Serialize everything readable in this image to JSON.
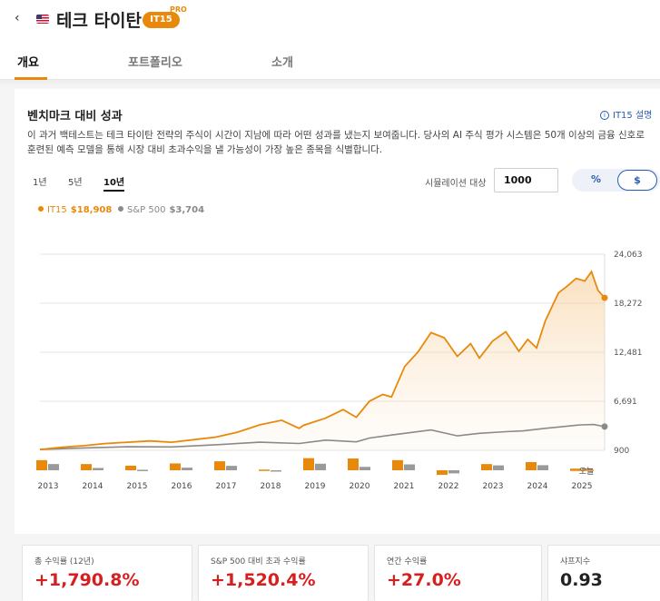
{
  "header": {
    "back_glyph": "‹",
    "title": "테크 타이탄",
    "badge": "IT15",
    "badge_sup": "PRO",
    "flag_icon": "us-flag-icon"
  },
  "tabs": [
    {
      "label": "개요",
      "active": true
    },
    {
      "label": "포트폴리오"
    },
    {
      "label": "소개"
    }
  ],
  "section": {
    "title": "벤치마크 대비 성과",
    "info_label": "IT15 설명",
    "description": "이 과거 백테스트는 테크 타이탄 전략의 주식이 시간이 지남에 따라 어떤 성과를 냈는지 보여줍니다. 당사의 AI 주식 평가 시스템은 50개 이상의 금융 신호로 훈련된 예측 모델을 통해 시장 대비 초과수익을 낼 가능성이 가장 높은 종목을 식별합니다."
  },
  "controls": {
    "periods": [
      {
        "label": "1년"
      },
      {
        "label": "5년"
      },
      {
        "label": "10년",
        "active": true
      }
    ],
    "sim_label": "시뮬레이션 대상",
    "sim_value": "1000",
    "toggle_pct": "%",
    "toggle_usd": "$"
  },
  "legend": [
    {
      "name": "IT15",
      "value": "$18,908",
      "color": "#e8890c"
    },
    {
      "name": "S&P 500",
      "value": "$3,704",
      "color": "#8a8a8a"
    }
  ],
  "chart_data": {
    "type": "line",
    "y_ticks": [
      "24,063",
      "18,272",
      "12,481",
      "6,691",
      "900"
    ],
    "ylim": [
      900,
      24063
    ],
    "x_labels": [
      "2013",
      "2014",
      "2015",
      "2016",
      "2017",
      "2018",
      "2019",
      "2020",
      "2021",
      "2022",
      "2023",
      "2024",
      "2025",
      "오늘"
    ],
    "grid": true,
    "series": [
      {
        "name": "IT15",
        "color": "#e8890c",
        "points": [
          [
            2013.0,
            1000
          ],
          [
            2013.5,
            1250
          ],
          [
            2014.0,
            1450
          ],
          [
            2014.5,
            1700
          ],
          [
            2015.0,
            1850
          ],
          [
            2015.5,
            2000
          ],
          [
            2016.0,
            1850
          ],
          [
            2016.5,
            2150
          ],
          [
            2017.0,
            2450
          ],
          [
            2017.5,
            3050
          ],
          [
            2018.0,
            3900
          ],
          [
            2018.5,
            4450
          ],
          [
            2018.9,
            3500
          ],
          [
            2019.0,
            3850
          ],
          [
            2019.5,
            4700
          ],
          [
            2019.9,
            5700
          ],
          [
            2020.2,
            4800
          ],
          [
            2020.5,
            6700
          ],
          [
            2020.8,
            7500
          ],
          [
            2021.0,
            7200
          ],
          [
            2021.3,
            10800
          ],
          [
            2021.6,
            12500
          ],
          [
            2021.9,
            14800
          ],
          [
            2022.2,
            14200
          ],
          [
            2022.5,
            12000
          ],
          [
            2022.8,
            13500
          ],
          [
            2023.0,
            11800
          ],
          [
            2023.3,
            13800
          ],
          [
            2023.6,
            14900
          ],
          [
            2023.9,
            12600
          ],
          [
            2024.1,
            14000
          ],
          [
            2024.3,
            13000
          ],
          [
            2024.5,
            16200
          ],
          [
            2024.8,
            19500
          ],
          [
            2025.0,
            20300
          ],
          [
            2025.2,
            21200
          ],
          [
            2025.4,
            20900
          ],
          [
            2025.55,
            22000
          ],
          [
            2025.7,
            19800
          ],
          [
            2025.85,
            18908
          ]
        ]
      },
      {
        "name": "S&P 500",
        "color": "#8a8a8a",
        "points": [
          [
            2013.0,
            1000
          ],
          [
            2014.0,
            1180
          ],
          [
            2015.0,
            1320
          ],
          [
            2016.0,
            1300
          ],
          [
            2017.0,
            1550
          ],
          [
            2018.0,
            1850
          ],
          [
            2018.9,
            1700
          ],
          [
            2019.5,
            2100
          ],
          [
            2020.2,
            1900
          ],
          [
            2020.5,
            2350
          ],
          [
            2021.0,
            2700
          ],
          [
            2021.9,
            3300
          ],
          [
            2022.5,
            2600
          ],
          [
            2023.0,
            2900
          ],
          [
            2023.6,
            3100
          ],
          [
            2024.0,
            3200
          ],
          [
            2024.5,
            3500
          ],
          [
            2025.0,
            3750
          ],
          [
            2025.3,
            3900
          ],
          [
            2025.6,
            3950
          ],
          [
            2025.85,
            3704
          ]
        ]
      }
    ],
    "annual_bars": [
      {
        "year": "2013",
        "it15": 0.62,
        "sp": 0.38
      },
      {
        "year": "2014",
        "it15": 0.38,
        "sp": 0.14
      },
      {
        "year": "2015",
        "it15": 0.28,
        "sp": 0.03
      },
      {
        "year": "2016",
        "it15": 0.42,
        "sp": 0.16
      },
      {
        "year": "2017",
        "it15": 0.55,
        "sp": 0.27
      },
      {
        "year": "2018",
        "it15": 0.04,
        "sp": -0.04
      },
      {
        "year": "2019",
        "it15": 0.74,
        "sp": 0.4
      },
      {
        "year": "2020",
        "it15": 0.72,
        "sp": 0.21
      },
      {
        "year": "2021",
        "it15": 0.62,
        "sp": 0.36
      },
      {
        "year": "2022",
        "it15": -0.28,
        "sp": -0.19
      },
      {
        "year": "2023",
        "it15": 0.38,
        "sp": 0.3
      },
      {
        "year": "2024",
        "it15": 0.5,
        "sp": 0.31
      },
      {
        "year": "2025",
        "it15": 0.1,
        "sp": 0.12
      }
    ]
  },
  "stats": [
    {
      "label": "총 수익률 (12년)",
      "value": "+1,790.8%"
    },
    {
      "label": "S&P 500 대비 초과 수익률",
      "value": "+1,520.4%"
    },
    {
      "label": "연간 수익률",
      "value": "+27.0%"
    },
    {
      "label": "샤프지수",
      "value": "0.93"
    }
  ]
}
